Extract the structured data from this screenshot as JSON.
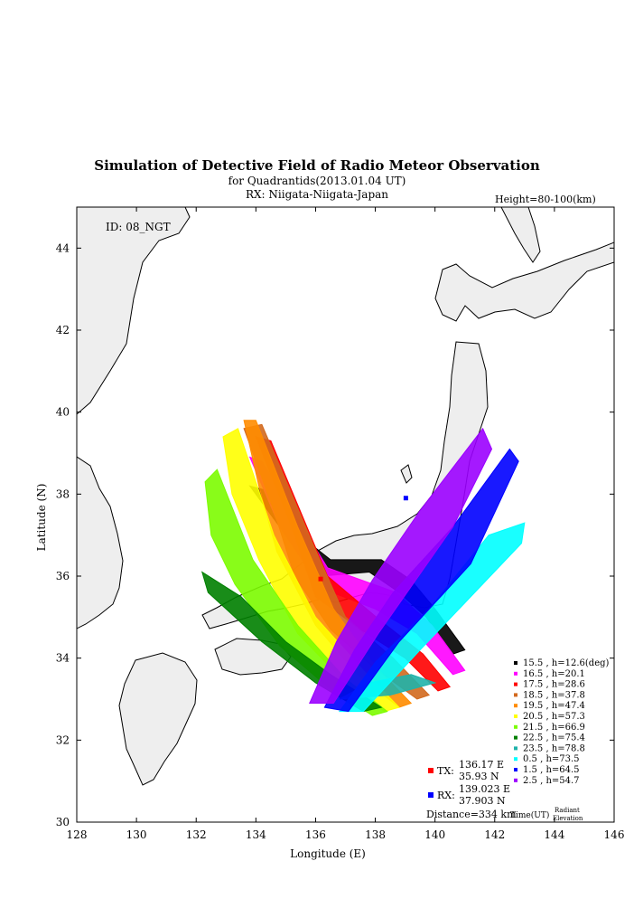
{
  "title": "Simulation of Detective Field of Radio Meteor Observation",
  "subtitle": "for Quadrantids(2013.01.04 UT)",
  "rx_line": "RX: Niigata-Niigata-Japan",
  "height_note": "Height=80-100(km)",
  "id_label": "ID: 08_NGT",
  "colors": {
    "land": "#eeeeee",
    "coast": "#000000",
    "tx": "#ff0000",
    "rx": "#0000ff"
  },
  "chart_data": {
    "type": "scatter",
    "xlabel": "Longitude (E)",
    "ylabel": "Latitude (N)",
    "xlim": [
      128,
      146
    ],
    "ylim": [
      30,
      45
    ],
    "xticks": [
      128,
      130,
      132,
      134,
      136,
      138,
      140,
      142,
      144,
      146
    ],
    "yticks": [
      30,
      32,
      34,
      36,
      38,
      40,
      42,
      44
    ],
    "tx": {
      "label": "TX:",
      "lon": 136.17,
      "lat": 35.93,
      "lon_text": "136.17 E",
      "lat_text": "35.93 N"
    },
    "rx": {
      "label": "RX:",
      "lon": 139.023,
      "lat": 37.903,
      "lon_text": "139.023 E",
      "lat_text": "37.903 N"
    },
    "distance": "Distance=334 km",
    "legend_footer": {
      "time": "Time(UT)",
      "radiant": "Radiant",
      "elevation": "Elevation"
    },
    "series": [
      {
        "time": "15.5",
        "label": "15.5 , h=12.6(deg)",
        "color": "#000000",
        "band": [
          [
            133.8,
            38.2
          ],
          [
            134.3,
            38.1
          ],
          [
            135.8,
            36.8
          ],
          [
            136.5,
            36.4
          ],
          [
            138.2,
            36.4
          ],
          [
            139.2,
            35.9
          ],
          [
            140.0,
            35.2
          ],
          [
            141.0,
            34.2
          ],
          [
            140.6,
            34.1
          ],
          [
            139.7,
            35.0
          ],
          [
            138.8,
            35.6
          ],
          [
            137.8,
            36.1
          ],
          [
            136.2,
            36.0
          ],
          [
            135.2,
            36.8
          ]
        ]
      },
      {
        "time": "16.5",
        "label": "16.5 , h=20.1",
        "color": "#ff00ff",
        "band": [
          [
            133.8,
            38.9
          ],
          [
            134.2,
            38.8
          ],
          [
            136.4,
            36.2
          ],
          [
            138.7,
            35.6
          ],
          [
            139.9,
            34.8
          ],
          [
            141.0,
            33.7
          ],
          [
            140.6,
            33.6
          ],
          [
            139.4,
            34.6
          ],
          [
            138.0,
            35.2
          ],
          [
            136.2,
            35.7
          ],
          [
            134.8,
            37.2
          ]
        ]
      },
      {
        "time": "17.5",
        "label": "17.5 , h=28.6",
        "color": "#ff0000",
        "band": [
          [
            134.0,
            39.4
          ],
          [
            134.5,
            39.3
          ],
          [
            136.4,
            36.0
          ],
          [
            138.2,
            34.9
          ],
          [
            139.6,
            34.1
          ],
          [
            140.5,
            33.3
          ],
          [
            140.1,
            33.2
          ],
          [
            139.0,
            34.0
          ],
          [
            137.5,
            34.7
          ],
          [
            136.0,
            35.5
          ],
          [
            135.2,
            37.2
          ]
        ]
      },
      {
        "time": "18.5",
        "label": "18.5 , h=37.8",
        "color": "#d2691e",
        "band": [
          [
            133.6,
            39.6
          ],
          [
            134.2,
            39.7
          ],
          [
            135.9,
            36.8
          ],
          [
            137.0,
            35.0
          ],
          [
            138.6,
            34.0
          ],
          [
            139.8,
            33.1
          ],
          [
            139.4,
            33.0
          ],
          [
            137.9,
            33.8
          ],
          [
            136.5,
            34.7
          ],
          [
            135.3,
            36.0
          ],
          [
            134.6,
            37.6
          ]
        ]
      },
      {
        "time": "19.5",
        "label": "19.5 , h=47.4",
        "color": "#ff8c00",
        "band": [
          [
            133.6,
            39.8
          ],
          [
            134.0,
            39.8
          ],
          [
            135.4,
            37.2
          ],
          [
            136.6,
            35.2
          ],
          [
            138.0,
            33.8
          ],
          [
            139.2,
            32.9
          ],
          [
            138.8,
            32.8
          ],
          [
            137.4,
            33.6
          ],
          [
            136.0,
            34.8
          ],
          [
            134.7,
            36.6
          ],
          [
            134.1,
            38.2
          ]
        ]
      },
      {
        "time": "20.5",
        "label": "20.5 , h=57.3",
        "color": "#ffff00",
        "band": [
          [
            132.9,
            39.4
          ],
          [
            133.4,
            39.6
          ],
          [
            134.6,
            37.0
          ],
          [
            136.0,
            35.0
          ],
          [
            137.6,
            33.7
          ],
          [
            138.8,
            32.8
          ],
          [
            138.3,
            32.7
          ],
          [
            137.0,
            33.4
          ],
          [
            135.4,
            34.6
          ],
          [
            134.1,
            36.4
          ],
          [
            133.2,
            38.0
          ]
        ]
      },
      {
        "time": "21.5",
        "label": "21.5 , h=66.9",
        "color": "#7cfc00",
        "band": [
          [
            132.3,
            38.3
          ],
          [
            132.7,
            38.6
          ],
          [
            133.9,
            36.4
          ],
          [
            135.4,
            34.8
          ],
          [
            137.0,
            33.5
          ],
          [
            138.4,
            32.7
          ],
          [
            137.9,
            32.6
          ],
          [
            136.4,
            33.3
          ],
          [
            134.8,
            34.3
          ],
          [
            133.3,
            35.8
          ],
          [
            132.5,
            37.0
          ]
        ]
      },
      {
        "time": "22.5",
        "label": "22.5 , h=75.4",
        "color": "#008000",
        "band": [
          [
            132.2,
            36.1
          ],
          [
            132.4,
            35.6
          ],
          [
            134.2,
            34.4
          ],
          [
            136.0,
            33.4
          ],
          [
            137.6,
            32.7
          ],
          [
            138.2,
            32.8
          ],
          [
            136.5,
            33.6
          ],
          [
            135.0,
            34.4
          ],
          [
            133.5,
            35.5
          ]
        ]
      },
      {
        "time": "23.5",
        "label": "23.5 , h=78.8",
        "color": "#20b2aa",
        "band": [
          [
            136.8,
            33.0
          ],
          [
            138.5,
            33.1
          ],
          [
            140.0,
            33.4
          ],
          [
            139.2,
            33.6
          ],
          [
            137.8,
            33.4
          ]
        ]
      },
      {
        "time": "0.5",
        "label": "0.5 , h=73.5",
        "color": "#00ffff",
        "band": [
          [
            136.8,
            32.7
          ],
          [
            137.6,
            32.7
          ],
          [
            139.5,
            34.2
          ],
          [
            142.9,
            36.8
          ],
          [
            143.0,
            37.3
          ],
          [
            141.8,
            37.0
          ],
          [
            139.8,
            35.2
          ],
          [
            138.0,
            33.9
          ]
        ]
      },
      {
        "time": "1.5",
        "label": "1.5 , h=64.5",
        "color": "#0000ff",
        "band": [
          [
            136.3,
            32.8
          ],
          [
            137.1,
            32.7
          ],
          [
            138.8,
            34.4
          ],
          [
            141.2,
            36.3
          ],
          [
            142.8,
            38.8
          ],
          [
            142.5,
            39.1
          ],
          [
            140.6,
            37.2
          ],
          [
            138.6,
            35.6
          ],
          [
            137.3,
            34.2
          ]
        ]
      },
      {
        "time": "2.5",
        "label": "2.5 , h=54.7",
        "color": "#9b00ff",
        "band": [
          [
            135.8,
            32.9
          ],
          [
            136.6,
            32.9
          ],
          [
            138.1,
            34.6
          ],
          [
            140.6,
            37.2
          ],
          [
            141.9,
            39.1
          ],
          [
            141.6,
            39.6
          ],
          [
            139.5,
            37.6
          ],
          [
            137.9,
            35.9
          ],
          [
            136.7,
            34.4
          ]
        ]
      }
    ]
  }
}
